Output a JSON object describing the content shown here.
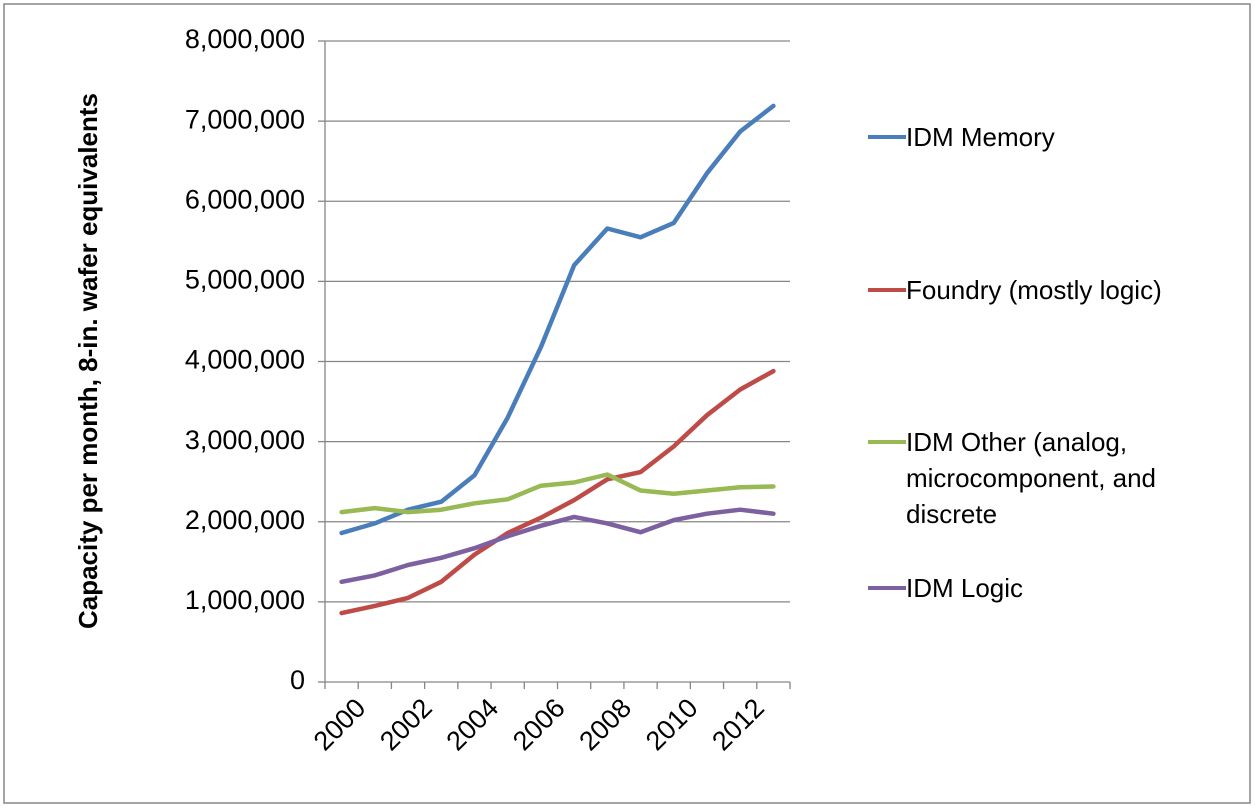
{
  "chart_data": {
    "type": "line",
    "y_label": "Capacity per month, 8-in. wafer equivalents",
    "categories": [
      "2000",
      null,
      "2002",
      null,
      "2004",
      null,
      "2006",
      null,
      "2008",
      null,
      "2010",
      null,
      "2012",
      null
    ],
    "series": [
      {
        "name": "IDM Memory",
        "color": "#4a7ebb",
        "values": [
          1860000,
          1980000,
          2150000,
          2250000,
          2580000,
          3300000,
          4180000,
          5200000,
          5660000,
          5550000,
          5730000,
          6350000,
          6870000,
          7190000
        ]
      },
      {
        "name": "Foundry (mostly logic)",
        "color": "#be4b48",
        "values": [
          860000,
          950000,
          1050000,
          1250000,
          1590000,
          1860000,
          2050000,
          2270000,
          2530000,
          2620000,
          2940000,
          3330000,
          3650000,
          3880000
        ]
      },
      {
        "name": "IDM Other (analog, microcomponent, and discrete",
        "color": "#98b954",
        "values": [
          2120000,
          2170000,
          2120000,
          2150000,
          2230000,
          2280000,
          2450000,
          2490000,
          2590000,
          2390000,
          2350000,
          2390000,
          2430000,
          2440000
        ]
      },
      {
        "name": "IDM Logic",
        "color": "#7d60a0",
        "values": [
          1250000,
          1330000,
          1460000,
          1550000,
          1670000,
          1820000,
          1950000,
          2060000,
          1980000,
          1870000,
          2020000,
          2100000,
          2150000,
          2100000
        ]
      }
    ],
    "ylim": [
      0,
      8000000
    ],
    "yticks": [
      0,
      {
        "value": 1000000,
        "label": "1,000,000"
      },
      {
        "value": 2000000,
        "label": "2,000,000"
      },
      {
        "value": 3000000,
        "label": "3,000,000"
      },
      {
        "value": 4000000,
        "label": "4,000,000"
      },
      {
        "value": 5000000,
        "label": "5,000,000"
      },
      {
        "value": 6000000,
        "label": "6,000,000"
      },
      {
        "value": 7000000,
        "label": "7,000,000"
      },
      {
        "value": 8000000,
        "label": "8,000,000"
      }
    ],
    "grid": true,
    "legend": "right"
  }
}
